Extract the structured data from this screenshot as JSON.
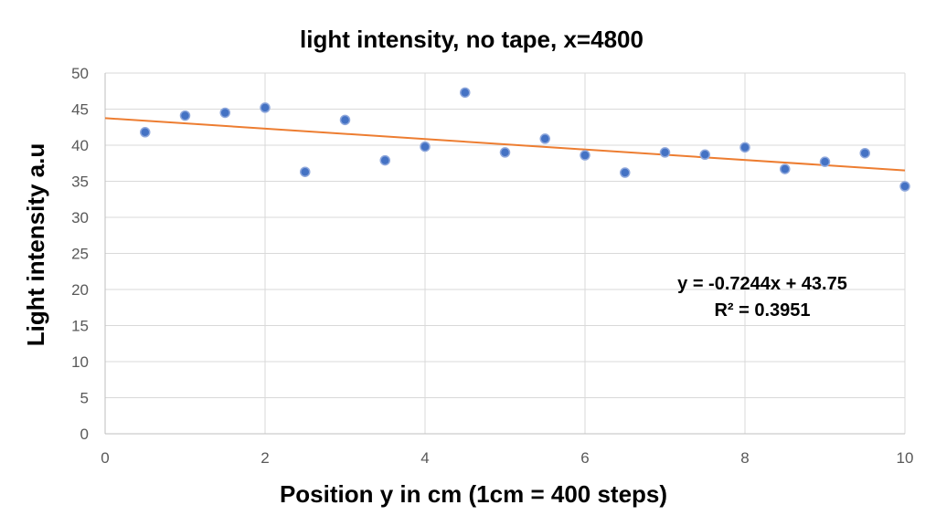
{
  "chart_data": {
    "type": "scatter",
    "title": "light intensity, no tape, x=4800",
    "xlabel": "Position y in cm (1cm = 400 steps)",
    "ylabel": "Light intensity a.u",
    "xlim": [
      0,
      10
    ],
    "ylim": [
      0,
      50
    ],
    "x_ticks": [
      0,
      2,
      4,
      6,
      8,
      10
    ],
    "y_ticks": [
      0,
      5,
      10,
      15,
      20,
      25,
      30,
      35,
      40,
      45,
      50
    ],
    "grid": true,
    "legend": "none",
    "series": [
      {
        "x": [
          0.5,
          1.0,
          1.5,
          2.0,
          2.5,
          3.0,
          3.5,
          4.0,
          4.5,
          5.0,
          5.5,
          6.0,
          6.5,
          7.0,
          7.5,
          8.0,
          8.5,
          9.0,
          9.5,
          10.0
        ],
        "y": [
          41.8,
          44.1,
          44.5,
          45.2,
          36.3,
          43.5,
          37.9,
          39.8,
          47.3,
          39.0,
          40.9,
          38.6,
          36.2,
          39.0,
          38.7,
          39.7,
          36.7,
          37.7,
          38.9,
          34.3
        ],
        "color": "#4472c4"
      }
    ],
    "trendline": {
      "type": "linear",
      "slope": -0.7244,
      "intercept": 43.75,
      "color": "#ed7d31",
      "equation": "y = -0.7244x + 43.75",
      "r2_label": "R² = 0.3951"
    }
  }
}
